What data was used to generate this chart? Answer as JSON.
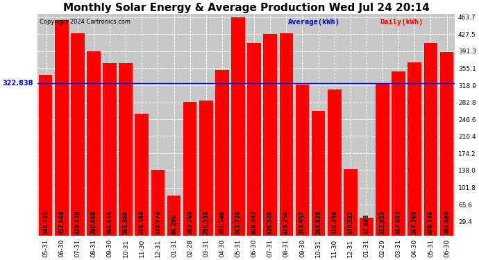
{
  "title": "Monthly Solar Energy & Average Production Wed Jul 24 20:14",
  "copyright": "Copyright 2024 Cartronics.com",
  "legend_average": "Average(kWh)",
  "legend_daily": "Daily(kWh)",
  "average_value": 322.838,
  "categories": [
    "05-31",
    "06-30",
    "07-31",
    "08-31",
    "09-30",
    "10-31",
    "11-30",
    "12-31",
    "01-31",
    "02-28",
    "03-31",
    "04-30",
    "05-31",
    "06-30",
    "07-31",
    "08-31",
    "09-30",
    "10-31",
    "11-30",
    "12-31",
    "01-31",
    "02-29",
    "03-31",
    "04-30",
    "05-31",
    "06-30"
  ],
  "values": [
    340.732,
    457.668,
    429.12,
    390.968,
    366.616,
    365.36,
    258.184,
    138.976,
    84.296,
    283.26,
    286.336,
    351.548,
    463.736,
    408.392,
    428.52,
    429.256,
    319.952,
    264.928,
    310.396,
    140.532,
    37.888,
    323.852,
    347.892,
    367.76,
    408.136,
    389.48
  ],
  "bar_color": "#ff0000",
  "average_line_color": "#0000cc",
  "average_label_color": "#0000cc",
  "daily_label_color": "#ff0000",
  "background_color": "#ffffff",
  "plot_bg_color": "#c8c8c8",
  "ylim_min": 0,
  "ylim_max": 470.0,
  "yticks": [
    29.4,
    65.6,
    101.8,
    138.0,
    174.2,
    210.4,
    246.6,
    282.8,
    318.9,
    355.1,
    391.3,
    427.5,
    463.7
  ],
  "title_fontsize": 11,
  "tick_fontsize": 6.5,
  "bar_label_fontsize": 5.5,
  "avg_label_fontsize": 7,
  "copyright_fontsize": 6,
  "legend_fontsize": 7.5
}
